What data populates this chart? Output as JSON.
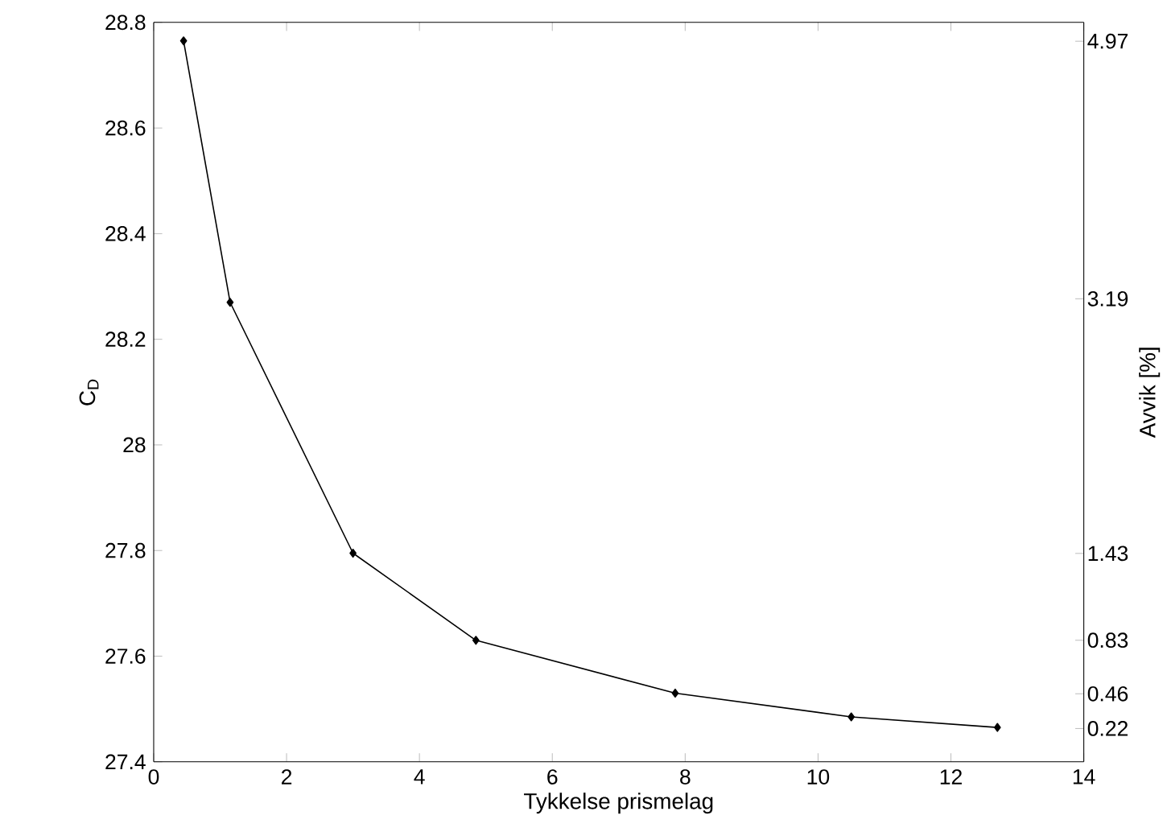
{
  "chart_data": {
    "type": "line",
    "xlabel": "Tykkelse prismelag",
    "ylabel": "C$_{D}$",
    "y2label": "Avvik [%]",
    "x": [
      0.45,
      1.15,
      3.0,
      4.85,
      7.85,
      10.5,
      12.7
    ],
    "series": [
      {
        "color": "#000000",
        "values": [
          28.765,
          28.27,
          27.795,
          27.63,
          27.53,
          27.485,
          27.465
        ]
      }
    ],
    "xlim": [
      0,
      14
    ],
    "xticks": [
      0,
      2,
      4,
      6,
      8,
      10,
      12,
      14
    ],
    "ylim": [
      27.4,
      28.8
    ],
    "yticks": [
      27.4,
      27.6,
      27.8,
      28,
      28.2,
      28.4,
      28.6,
      28.8
    ],
    "y2lim": [
      -0.01,
      5.1
    ],
    "y2ticks": [
      0.22,
      0.46,
      0.83,
      1.43,
      3.19,
      4.97
    ],
    "marker": "diamond",
    "line_style": "solid"
  }
}
